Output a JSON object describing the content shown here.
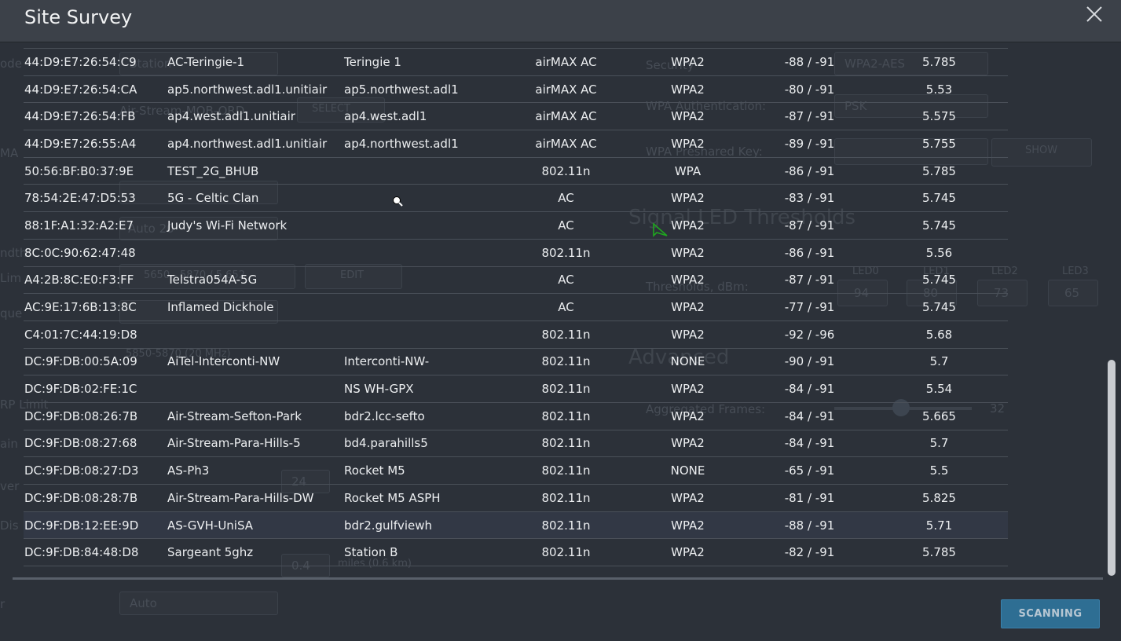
{
  "modal": {
    "title": "Site Survey",
    "close_icon": "close-icon",
    "scan_button_label": "SCANNING"
  },
  "background": {
    "left_labels": [
      "ode",
      "MA",
      "ndth",
      "Lim",
      "que",
      "RP Limit",
      "ain",
      "ver",
      "Dis",
      "r"
    ],
    "right_labels": {
      "security": "Security",
      "wpa_auth": "WPA Authentication:",
      "wpa_key": "WPA Preshared Key:",
      "led_heading": "Signal LED Thresholds",
      "thresholds": "Thresholds, dBm:",
      "advanced_heading": "Advanced",
      "aggregation": "Aggregated Frames:"
    },
    "right_values": {
      "security_value": "WPA2-AES",
      "psk": "PSK",
      "show": "SHOW",
      "led0": "LED0",
      "led1": "LED1",
      "led2": "LED2",
      "led3": "LED3",
      "led0_val": "94",
      "led1_val": "80",
      "led2_val": "73",
      "led3_val": "65",
      "agg_val": "32"
    },
    "left_values": {
      "mode": "Station",
      "ssid_hint": "Air-Stream-MOB-ORD",
      "select": "SELECT",
      "auto": "Auto 20",
      "freq_range": "5650 - 5870 / 5.652",
      "edit": "EDIT",
      "bandwidth": "5850-5870 (20 MHz)",
      "power": "24",
      "distance": "0.4",
      "distance_unit": "miles (0.6 km)",
      "auto_select": "Auto"
    }
  },
  "table": {
    "rows": [
      {
        "mac": "44:D9:E7:26:54:C9",
        "ssid": "AC-Teringie-1",
        "device": "Teringie 1",
        "radio": "airMAX AC",
        "security": "WPA2",
        "signal": "-88 / -91",
        "freq": "5.785"
      },
      {
        "mac": "44:D9:E7:26:54:CA",
        "ssid": "ap5.northwest.adl1.unitiair",
        "device": "ap5.northwest.adl1",
        "radio": "airMAX AC",
        "security": "WPA2",
        "signal": "-80 / -91",
        "freq": "5.53"
      },
      {
        "mac": "44:D9:E7:26:54:FB",
        "ssid": "ap4.west.adl1.unitiair",
        "device": "ap4.west.adl1",
        "radio": "airMAX AC",
        "security": "WPA2",
        "signal": "-87 / -91",
        "freq": "5.575"
      },
      {
        "mac": "44:D9:E7:26:55:A4",
        "ssid": "ap4.northwest.adl1.unitiair",
        "device": "ap4.northwest.adl1",
        "radio": "airMAX AC",
        "security": "WPA2",
        "signal": "-89 / -91",
        "freq": "5.755"
      },
      {
        "mac": "50:56:BF:B0:37:9E",
        "ssid": "TEST_2G_BHUB",
        "device": "",
        "radio": "802.11n",
        "security": "WPA",
        "signal": "-86 / -91",
        "freq": "5.785"
      },
      {
        "mac": "78:54:2E:47:D5:53",
        "ssid": "5G - Celtic Clan",
        "device": "",
        "radio": "AC",
        "security": "WPA2",
        "signal": "-83 / -91",
        "freq": "5.745"
      },
      {
        "mac": "88:1F:A1:32:A2:E7",
        "ssid": "Judy's Wi-Fi Network",
        "device": "",
        "radio": "AC",
        "security": "WPA2",
        "signal": "-87 / -91",
        "freq": "5.745"
      },
      {
        "mac": "8C:0C:90:62:47:48",
        "ssid": "",
        "device": "",
        "radio": "802.11n",
        "security": "WPA2",
        "signal": "-86 / -91",
        "freq": "5.56"
      },
      {
        "mac": "A4:2B:8C:E0:F3:FF",
        "ssid": "Telstra054A-5G",
        "device": "",
        "radio": "AC",
        "security": "WPA2",
        "signal": "-87 / -91",
        "freq": "5.745"
      },
      {
        "mac": "AC:9E:17:6B:13:8C",
        "ssid": "Inflamed Dickhole",
        "device": "",
        "radio": "AC",
        "security": "WPA2",
        "signal": "-77 / -91",
        "freq": "5.745"
      },
      {
        "mac": "C4:01:7C:44:19:D8",
        "ssid": "",
        "device": "",
        "radio": "802.11n",
        "security": "WPA2",
        "signal": "-92 / -96",
        "freq": "5.68"
      },
      {
        "mac": "DC:9F:DB:00:5A:09",
        "ssid": "AiTel-Interconti-NW",
        "device": "Interconti-NW-",
        "radio": "802.11n",
        "security": "NONE",
        "signal": "-90 / -91",
        "freq": "5.7"
      },
      {
        "mac": "DC:9F:DB:02:FE:1C",
        "ssid": "",
        "device": "NS WH-GPX",
        "radio": "802.11n",
        "security": "WPA2",
        "signal": "-84 / -91",
        "freq": "5.54"
      },
      {
        "mac": "DC:9F:DB:08:26:7B",
        "ssid": "Air-Stream-Sefton-Park",
        "device": "bdr2.lcc-sefto",
        "radio": "802.11n",
        "security": "WPA2",
        "signal": "-84 / -91",
        "freq": "5.665"
      },
      {
        "mac": "DC:9F:DB:08:27:68",
        "ssid": "Air-Stream-Para-Hills-5",
        "device": "bd4.parahills5",
        "radio": "802.11n",
        "security": "WPA2",
        "signal": "-84 / -91",
        "freq": "5.7"
      },
      {
        "mac": "DC:9F:DB:08:27:D3",
        "ssid": "AS-Ph3",
        "device": "Rocket M5",
        "radio": "802.11n",
        "security": "NONE",
        "signal": "-65 / -91",
        "freq": "5.5"
      },
      {
        "mac": "DC:9F:DB:08:28:7B",
        "ssid": "Air-Stream-Para-Hills-DW",
        "device": "Rocket M5 ASPH",
        "radio": "802.11n",
        "security": "WPA2",
        "signal": "-81 / -91",
        "freq": "5.825"
      },
      {
        "mac": "DC:9F:DB:12:EE:9D",
        "ssid": "AS-GVH-UniSA",
        "device": "bdr2.gulfviewh",
        "radio": "802.11n",
        "security": "WPA2",
        "signal": "-88 / -91",
        "freq": "5.71"
      },
      {
        "mac": "DC:9F:DB:84:48:D8",
        "ssid": "Sargeant 5ghz",
        "device": "Station B",
        "radio": "802.11n",
        "security": "WPA2",
        "signal": "-82 / -91",
        "freq": "5.785"
      }
    ]
  },
  "colors": {
    "header_bg": "#3c4149",
    "body_bg": "#2c3139",
    "accent": "#2e6e93",
    "text": "#eceef0"
  }
}
